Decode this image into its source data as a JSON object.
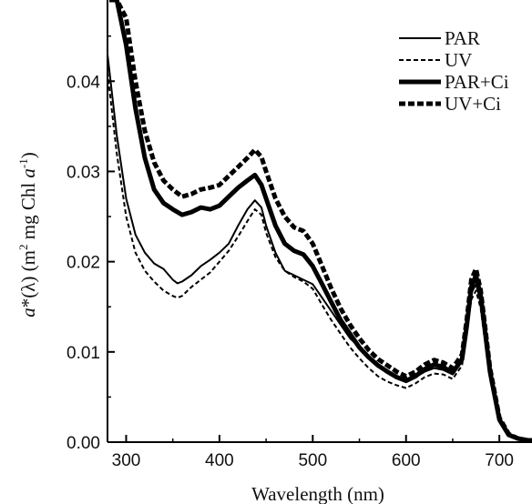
{
  "chart_data": {
    "type": "line",
    "title": "",
    "xlabel": "Wavelength (nm)",
    "ylabel_parts": {
      "sym": "a",
      "star": "*(λ) (m",
      "sup2": "2",
      "mid": " mg Chl ",
      "sym2": "a",
      "supm1": "-1",
      "close": ")"
    },
    "xlim": [
      280,
      735
    ],
    "ylim": [
      0,
      0.049
    ],
    "xticks": [
      300,
      400,
      500,
      600,
      700
    ],
    "xtick_labels": [
      "300",
      "400",
      "500",
      "600",
      "700"
    ],
    "yticks": [
      0,
      0.01,
      0.02,
      0.03,
      0.04
    ],
    "ytick_labels": [
      "0.00",
      "0.01",
      "0.02",
      "0.03",
      "0.04"
    ],
    "legend_position": "top-right",
    "grid": false,
    "series": [
      {
        "name": "PAR",
        "style": "thin-solid",
        "x": [
          280,
          290,
          300,
          310,
          320,
          330,
          340,
          350,
          355,
          360,
          370,
          380,
          390,
          400,
          410,
          420,
          430,
          438,
          445,
          450,
          460,
          470,
          480,
          490,
          500,
          510,
          520,
          530,
          540,
          550,
          560,
          570,
          580,
          590,
          600,
          610,
          620,
          630,
          640,
          650,
          660,
          665,
          670,
          675,
          680,
          690,
          700,
          710,
          720,
          730,
          735
        ],
        "y": [
          0.043,
          0.034,
          0.027,
          0.023,
          0.021,
          0.0198,
          0.0192,
          0.018,
          0.0176,
          0.0178,
          0.0185,
          0.0195,
          0.0202,
          0.021,
          0.022,
          0.024,
          0.0258,
          0.0268,
          0.026,
          0.024,
          0.021,
          0.019,
          0.0185,
          0.018,
          0.0175,
          0.016,
          0.0145,
          0.013,
          0.0115,
          0.0105,
          0.0095,
          0.0085,
          0.0078,
          0.0072,
          0.0068,
          0.0072,
          0.0078,
          0.0082,
          0.008,
          0.0075,
          0.009,
          0.0125,
          0.0165,
          0.0175,
          0.0155,
          0.0075,
          0.0025,
          0.0008,
          0.0004,
          0.0002,
          0.0002
        ]
      },
      {
        "name": "UV",
        "style": "thin-dashed",
        "x": [
          280,
          290,
          300,
          310,
          320,
          330,
          340,
          350,
          355,
          360,
          370,
          380,
          390,
          400,
          410,
          420,
          430,
          438,
          445,
          450,
          460,
          470,
          480,
          490,
          500,
          510,
          520,
          530,
          540,
          550,
          560,
          570,
          580,
          590,
          600,
          610,
          620,
          630,
          640,
          650,
          660,
          665,
          670,
          675,
          680,
          690,
          700,
          710,
          720,
          730,
          735
        ],
        "y": [
          0.041,
          0.032,
          0.025,
          0.021,
          0.019,
          0.0178,
          0.0168,
          0.0162,
          0.016,
          0.0162,
          0.0172,
          0.018,
          0.0188,
          0.02,
          0.0212,
          0.0228,
          0.0245,
          0.0258,
          0.0252,
          0.0232,
          0.0205,
          0.019,
          0.0183,
          0.0178,
          0.017,
          0.0152,
          0.0135,
          0.012,
          0.0105,
          0.0093,
          0.0082,
          0.0073,
          0.0067,
          0.0063,
          0.006,
          0.0065,
          0.0072,
          0.0076,
          0.0075,
          0.007,
          0.0085,
          0.012,
          0.0158,
          0.0168,
          0.0148,
          0.007,
          0.0022,
          0.0007,
          0.0003,
          0.0002,
          0.0002
        ]
      },
      {
        "name": "PAR+Ci",
        "style": "thick-solid",
        "x": [
          282,
          290,
          300,
          310,
          320,
          330,
          340,
          350,
          360,
          370,
          380,
          390,
          400,
          410,
          420,
          430,
          438,
          445,
          450,
          460,
          470,
          480,
          490,
          500,
          510,
          520,
          530,
          540,
          550,
          560,
          570,
          580,
          590,
          600,
          610,
          620,
          630,
          640,
          650,
          660,
          665,
          670,
          675,
          680,
          690,
          700,
          710,
          720,
          730,
          735
        ],
        "y": [
          0.049,
          0.049,
          0.044,
          0.037,
          0.0315,
          0.028,
          0.0265,
          0.0258,
          0.0252,
          0.0255,
          0.026,
          0.0258,
          0.0262,
          0.0272,
          0.0282,
          0.029,
          0.0296,
          0.0285,
          0.027,
          0.024,
          0.022,
          0.0212,
          0.0208,
          0.0195,
          0.0175,
          0.0155,
          0.0135,
          0.012,
          0.0105,
          0.0094,
          0.0085,
          0.0078,
          0.0072,
          0.0068,
          0.0073,
          0.0081,
          0.0086,
          0.0083,
          0.0077,
          0.0092,
          0.0128,
          0.0172,
          0.0185,
          0.0162,
          0.0078,
          0.0025,
          0.0008,
          0.0004,
          0.0002,
          0.0002
        ]
      },
      {
        "name": "UV+Ci",
        "style": "thick-dashed",
        "x": [
          284,
          290,
          300,
          310,
          320,
          330,
          340,
          350,
          360,
          370,
          380,
          390,
          400,
          410,
          420,
          430,
          438,
          445,
          450,
          460,
          470,
          480,
          490,
          500,
          510,
          520,
          530,
          540,
          550,
          560,
          570,
          580,
          590,
          600,
          610,
          620,
          630,
          640,
          650,
          660,
          665,
          670,
          675,
          680,
          690,
          700,
          710,
          720,
          730,
          735
        ],
        "y": [
          0.049,
          0.049,
          0.047,
          0.04,
          0.0345,
          0.031,
          0.029,
          0.028,
          0.0272,
          0.0275,
          0.028,
          0.0282,
          0.0285,
          0.0295,
          0.0305,
          0.0315,
          0.0324,
          0.0316,
          0.03,
          0.027,
          0.025,
          0.0238,
          0.0234,
          0.022,
          0.0195,
          0.017,
          0.0148,
          0.013,
          0.0115,
          0.0102,
          0.0092,
          0.0085,
          0.0078,
          0.0073,
          0.0078,
          0.0086,
          0.0091,
          0.0088,
          0.0082,
          0.0097,
          0.0135,
          0.018,
          0.0192,
          0.0168,
          0.0082,
          0.0027,
          0.0009,
          0.0004,
          0.0002,
          0.0002
        ]
      }
    ]
  }
}
